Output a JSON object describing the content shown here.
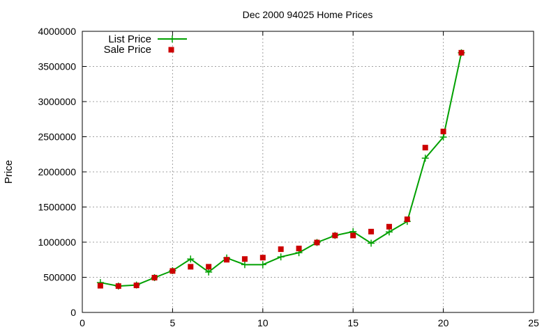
{
  "chart_data": {
    "type": "line",
    "title": "Dec 2000 94025 Home Prices",
    "xlabel": "",
    "ylabel": "Price",
    "xlim": [
      0,
      25
    ],
    "ylim": [
      0,
      4000000
    ],
    "xticks": [
      0,
      5,
      10,
      15,
      20,
      25
    ],
    "yticks": [
      0,
      500000,
      1000000,
      1500000,
      2000000,
      2500000,
      3000000,
      3500000,
      4000000
    ],
    "grid": true,
    "legend_position": "top-left",
    "series": [
      {
        "name": "List Price",
        "style": "line-with-plus",
        "color": "#00a000",
        "x": [
          1,
          2,
          3,
          4,
          5,
          6,
          7,
          8,
          9,
          10,
          11,
          12,
          13,
          14,
          15,
          16,
          17,
          18,
          19,
          20,
          21
        ],
        "y": [
          425000,
          375000,
          390000,
          495000,
          595000,
          760000,
          575000,
          775000,
          680000,
          680000,
          790000,
          850000,
          995000,
          1095000,
          1150000,
          985000,
          1145000,
          1295000,
          2195000,
          2495000,
          3695000
        ]
      },
      {
        "name": "Sale Price",
        "style": "square-points",
        "color": "#cc0000",
        "x": [
          1,
          2,
          3,
          4,
          5,
          6,
          7,
          8,
          9,
          10,
          11,
          12,
          13,
          14,
          15,
          16,
          17,
          18,
          19,
          20,
          21
        ],
        "y": [
          380000,
          375000,
          385000,
          495000,
          590000,
          650000,
          650000,
          750000,
          760000,
          780000,
          900000,
          910000,
          995000,
          1095000,
          1095000,
          1150000,
          1220000,
          1325000,
          2345000,
          2575000,
          3695000
        ]
      }
    ]
  }
}
